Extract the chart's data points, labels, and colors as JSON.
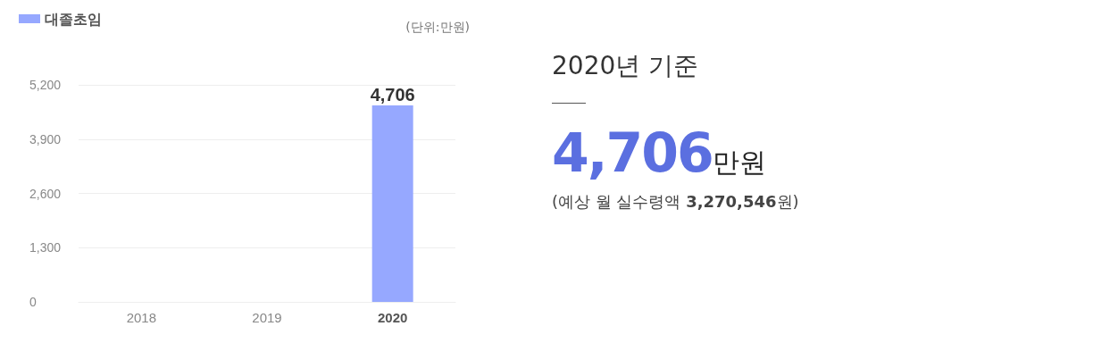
{
  "chart_data": [
    {
      "type": "bar",
      "categories": [
        "2018",
        "2019",
        "2020"
      ],
      "series": [
        {
          "name": "대졸초임",
          "color": "#96a8ff",
          "values": [
            null,
            null,
            4706
          ],
          "value_labels": [
            null,
            null,
            "4,706"
          ]
        }
      ],
      "ylim": [
        0,
        5200
      ],
      "yticks": [
        0,
        {
          "value": 1300,
          "label": "1,300"
        },
        {
          "value": 2600,
          "label": "2,600"
        },
        {
          "value": 3900,
          "label": "3,900"
        },
        {
          "value": 5200,
          "label": "5,200"
        }
      ],
      "grid": "y",
      "legend": "top left",
      "annotations": [
        "(단위:만원)"
      ]
    },
    {
      "type": "other",
      "title": "2020년 기준",
      "annotations": [
        "4,706만원",
        "(예상 월 실수령액 3,270,546원)"
      ]
    }
  ]
}
